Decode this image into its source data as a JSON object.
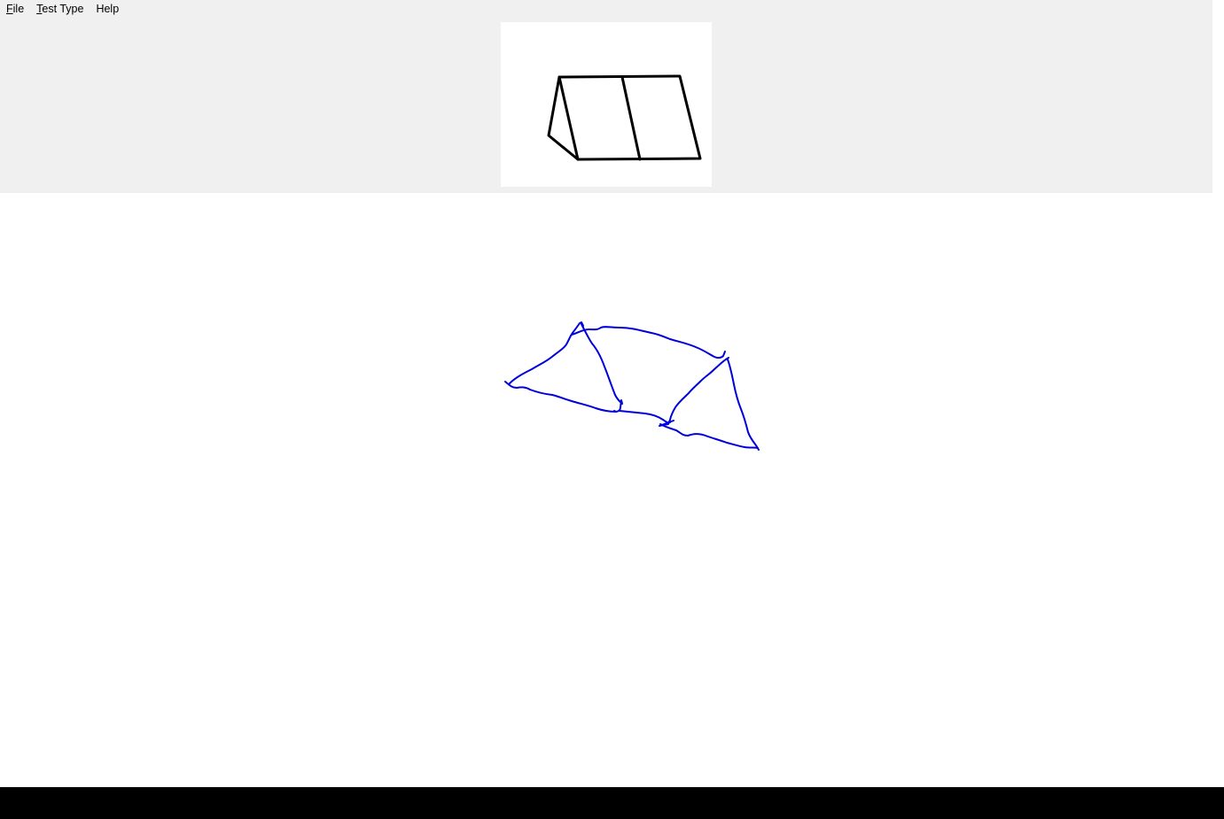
{
  "menu": {
    "items": [
      {
        "mnemonic": "F",
        "rest": "ile"
      },
      {
        "mnemonic": "T",
        "rest": "est Type"
      },
      {
        "mnemonic": "",
        "rest": "Help"
      }
    ]
  },
  "reference": {
    "shape": "triangular-prism",
    "stroke_color": "#000000"
  },
  "sketch": {
    "stroke_color": "#0000dd"
  },
  "colors": {
    "panel_bg": "#f0f0f0",
    "canvas_bg": "#ffffff",
    "taskbar_bg": "#000000"
  }
}
